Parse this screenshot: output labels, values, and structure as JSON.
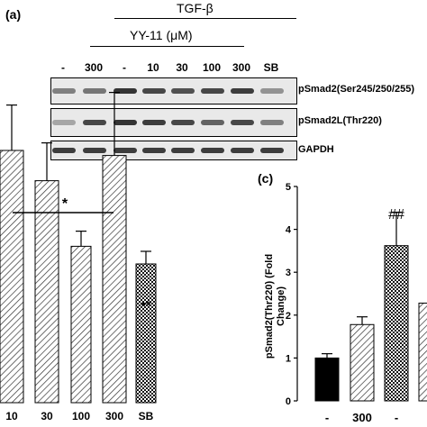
{
  "panels": {
    "a": "(a)",
    "c": "(c)"
  },
  "treatment": {
    "tgf": "TGF-β",
    "yy": "YY-11 (μM)"
  },
  "lanes": [
    "-",
    "300",
    "-",
    "10",
    "30",
    "100",
    "300",
    "SB"
  ],
  "blots": [
    {
      "label": "pSmad2(Ser245/250/255)",
      "intensity": [
        0.55,
        0.6,
        0.95,
        0.85,
        0.8,
        0.85,
        0.9,
        0.45
      ]
    },
    {
      "label": "pSmad2L(Thr220)",
      "intensity": [
        0.35,
        0.85,
        0.95,
        0.9,
        0.85,
        0.7,
        0.85,
        0.55
      ]
    },
    {
      "label": "GAPDH",
      "intensity": [
        0.9,
        0.9,
        0.9,
        0.9,
        0.9,
        0.9,
        0.9,
        0.9
      ]
    }
  ],
  "chart_data": [
    {
      "type": "bar",
      "categories": [
        "10",
        "30",
        "100",
        "300",
        "SB"
      ],
      "values": [
        1.0,
        0.88,
        0.62,
        0.98,
        0.55
      ],
      "errors": [
        0.18,
        0.15,
        0.06,
        0.25,
        0.05
      ],
      "fills": [
        "hatch",
        "hatch",
        "hatch",
        "hatch",
        "checker"
      ],
      "annotations": [
        {
          "text": "*",
          "category_span": [
            "10",
            "300"
          ]
        },
        {
          "text": "**",
          "category": "SB"
        }
      ]
    },
    {
      "type": "bar",
      "categories": [
        "-",
        "300",
        "-",
        ""
      ],
      "values": [
        1.0,
        1.78,
        3.62,
        2.28
      ],
      "errors": [
        0.1,
        0.18,
        0.78,
        0.0
      ],
      "fills": [
        "black",
        "hatch",
        "checker",
        "hatch"
      ],
      "ylabel": "pSmad2(Thr220) (Fold Change)",
      "ylim": [
        0,
        5
      ],
      "yticks": [
        "0",
        "1",
        "2",
        "3",
        "4",
        "5"
      ],
      "annotations": [
        {
          "text": "##",
          "category": "-"
        }
      ]
    }
  ],
  "colors": {
    "hatch_stroke": "#333333",
    "bar_dark": "#000000"
  }
}
